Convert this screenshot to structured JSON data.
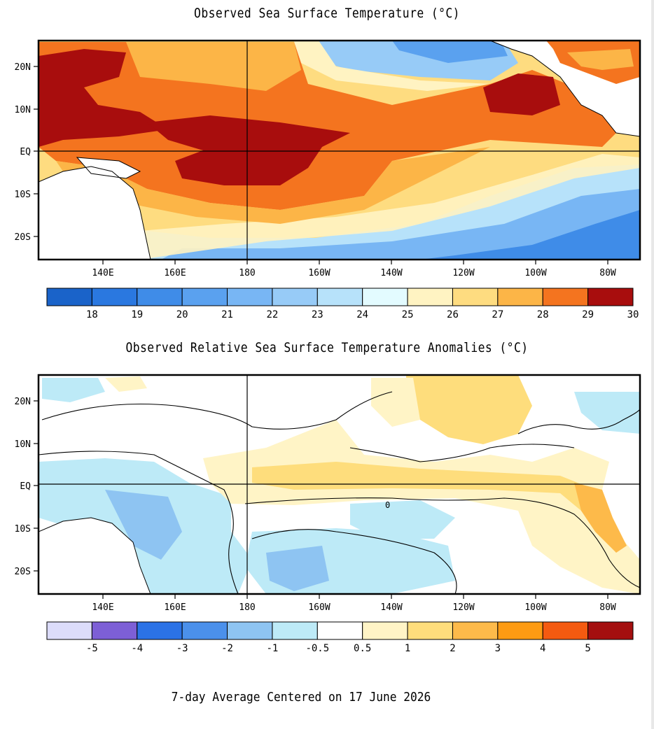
{
  "sst_panel": {
    "title": "Observed Sea Surface Temperature (°C)",
    "lon_ticks": [
      "140E",
      "160E",
      "180",
      "160W",
      "140W",
      "120W",
      "100W",
      "80W"
    ],
    "lat_ticks": [
      "20N",
      "10N",
      "EQ",
      "10S",
      "20S"
    ],
    "colorbar": {
      "colors": [
        "#1a63c9",
        "#2a78e0",
        "#3f8ce8",
        "#5aa1ef",
        "#78b6f4",
        "#97cbf7",
        "#b7e2fa",
        "#e3fbff",
        "#fff3c2",
        "#fedc80",
        "#fcb547",
        "#f4741f",
        "#a80d0d"
      ],
      "labels": [
        "18",
        "19",
        "20",
        "21",
        "22",
        "23",
        "24",
        "25",
        "26",
        "27",
        "28",
        "29",
        "30"
      ]
    }
  },
  "anom_panel": {
    "title": "Observed Relative Sea Surface Temperature Anomalies (°C)",
    "lon_ticks": [
      "140E",
      "160E",
      "180",
      "160W",
      "140W",
      "120W",
      "100W",
      "80W"
    ],
    "lat_ticks": [
      "20N",
      "10N",
      "EQ",
      "10S",
      "20S"
    ],
    "contour_label": "0",
    "colorbar": {
      "colors": [
        "#dcdcfa",
        "#7d5fd6",
        "#2b72e6",
        "#4b90eb",
        "#8ec4f2",
        "#bdeaf7",
        "#ffffff",
        "#fff4c6",
        "#fedd7c",
        "#fdba4a",
        "#fd9b13",
        "#f45a10",
        "#a40f0f"
      ],
      "labels": [
        "-5",
        "-4",
        "-3",
        "-2",
        "-1",
        "-0.5",
        "0.5",
        "1",
        "2",
        "3",
        "4",
        "5"
      ]
    }
  },
  "footer": "7-day Average Centered on 17 June 2026"
}
